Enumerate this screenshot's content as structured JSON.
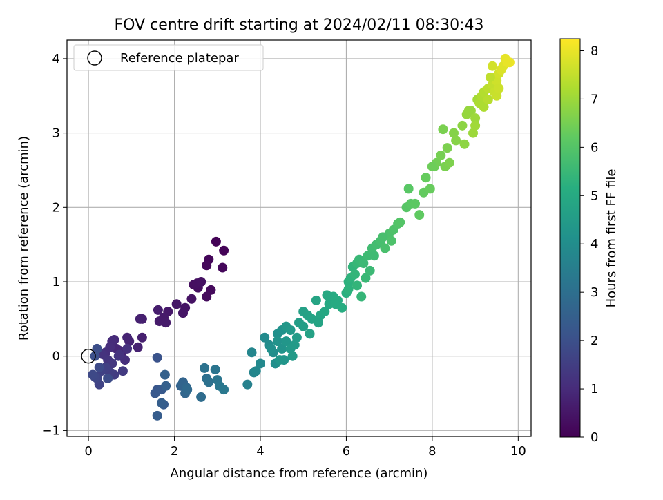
{
  "chart_data": {
    "type": "scatter",
    "title": "FOV centre drift starting at 2024/02/11 08:30:43",
    "xlabel": "Angular distance from reference (arcmin)",
    "ylabel": "Rotation from reference (arcmin)",
    "xlim": [
      -0.5,
      10.3
    ],
    "ylim": [
      -1.08,
      4.25
    ],
    "xticks": [
      0,
      2,
      4,
      6,
      8,
      10
    ],
    "yticks": [
      -1,
      0,
      1,
      2,
      3,
      4
    ],
    "grid": true,
    "legend": {
      "placement": "top-left",
      "entries": [
        "Reference platepar"
      ]
    },
    "reference_point": {
      "x": 0,
      "y": 0,
      "marker": "hollow-circle"
    },
    "colorbar": {
      "label": "Hours from first FF file",
      "colormap": "viridis",
      "range": [
        0,
        8.25
      ],
      "ticks": [
        0,
        1,
        2,
        3,
        4,
        5,
        6,
        7,
        8
      ]
    },
    "series": [
      {
        "color_by": "hours",
        "points": [
          [
            2.97,
            1.54,
            0.05
          ],
          [
            3.15,
            1.42,
            0.08
          ],
          [
            2.8,
            1.3,
            0.12
          ],
          [
            3.12,
            1.19,
            0.15
          ],
          [
            2.75,
            1.22,
            0.18
          ],
          [
            2.85,
            0.89,
            0.2
          ],
          [
            2.75,
            0.8,
            0.25
          ],
          [
            2.55,
            0.92,
            0.3
          ],
          [
            2.45,
            0.96,
            0.33
          ],
          [
            2.53,
            0.98,
            0.35
          ],
          [
            2.62,
            1.0,
            0.38
          ],
          [
            2.4,
            0.77,
            0.4
          ],
          [
            2.25,
            0.65,
            0.45
          ],
          [
            2.2,
            0.58,
            0.48
          ],
          [
            2.05,
            0.7,
            0.5
          ],
          [
            1.85,
            0.6,
            0.55
          ],
          [
            1.75,
            0.52,
            0.58
          ],
          [
            1.65,
            0.47,
            0.6
          ],
          [
            1.8,
            0.45,
            0.62
          ],
          [
            1.62,
            0.62,
            0.65
          ],
          [
            1.25,
            0.5,
            0.7
          ],
          [
            1.25,
            0.25,
            0.72
          ],
          [
            1.2,
            0.5,
            0.75
          ],
          [
            1.15,
            0.12,
            0.78
          ],
          [
            0.95,
            0.2,
            0.8
          ],
          [
            0.9,
            0.25,
            0.82
          ],
          [
            0.7,
            0.08,
            0.85
          ],
          [
            0.78,
            0.05,
            0.88
          ],
          [
            0.65,
            0.1,
            0.9
          ],
          [
            0.6,
            0.22,
            0.95
          ],
          [
            0.55,
            0.2,
            1.0
          ],
          [
            0.5,
            0.12,
            1.05
          ],
          [
            0.4,
            0.05,
            1.1
          ],
          [
            0.35,
            0.02,
            1.15
          ],
          [
            0.3,
            0.03,
            1.2
          ],
          [
            0.45,
            -0.05,
            1.25
          ],
          [
            0.55,
            -0.1,
            1.3
          ],
          [
            0.7,
            0.0,
            1.35
          ],
          [
            0.8,
            -0.2,
            1.4
          ],
          [
            0.6,
            -0.25,
            1.45
          ],
          [
            0.5,
            -0.22,
            1.5
          ],
          [
            0.4,
            -0.15,
            1.55
          ],
          [
            0.3,
            -0.2,
            1.6
          ],
          [
            0.25,
            -0.38,
            1.65
          ],
          [
            0.2,
            -0.3,
            1.7
          ],
          [
            0.15,
            -0.28,
            1.75
          ],
          [
            0.1,
            -0.25,
            1.8
          ],
          [
            0.25,
            -0.15,
            1.85
          ],
          [
            0.45,
            -0.3,
            1.9
          ],
          [
            0.2,
            0.1,
            1.95
          ],
          [
            0.15,
            0.0,
            2.0
          ],
          [
            0.85,
            -0.05,
            1.1
          ],
          [
            0.9,
            0.1,
            1.15
          ],
          [
            0.72,
            0.02,
            1.2
          ],
          [
            1.6,
            -0.02,
            2.1
          ],
          [
            1.6,
            -0.45,
            2.2
          ],
          [
            1.55,
            -0.5,
            2.25
          ],
          [
            1.7,
            -0.45,
            2.3
          ],
          [
            1.75,
            -0.65,
            2.35
          ],
          [
            1.6,
            -0.8,
            2.4
          ],
          [
            1.7,
            -0.63,
            2.45
          ],
          [
            1.8,
            -0.4,
            2.5
          ],
          [
            1.78,
            -0.25,
            2.55
          ],
          [
            2.15,
            -0.4,
            2.6
          ],
          [
            2.2,
            -0.35,
            2.65
          ],
          [
            2.25,
            -0.5,
            2.7
          ],
          [
            2.28,
            -0.42,
            2.75
          ],
          [
            2.3,
            -0.45,
            2.8
          ],
          [
            2.62,
            -0.55,
            2.9
          ],
          [
            2.75,
            -0.3,
            3.0
          ],
          [
            2.8,
            -0.35,
            3.05
          ],
          [
            2.7,
            -0.16,
            3.1
          ],
          [
            2.95,
            -0.18,
            3.15
          ],
          [
            3.0,
            -0.32,
            3.2
          ],
          [
            3.05,
            -0.4,
            3.25
          ],
          [
            3.15,
            -0.45,
            3.3
          ],
          [
            3.7,
            -0.38,
            3.6
          ],
          [
            3.85,
            -0.22,
            3.7
          ],
          [
            3.8,
            0.05,
            3.75
          ],
          [
            3.9,
            -0.2,
            3.8
          ],
          [
            4.0,
            -0.1,
            3.85
          ],
          [
            4.1,
            0.25,
            3.9
          ],
          [
            4.2,
            0.15,
            3.95
          ],
          [
            4.3,
            0.05,
            4.0
          ],
          [
            4.35,
            -0.1,
            4.05
          ],
          [
            4.4,
            0.3,
            4.1
          ],
          [
            4.5,
            0.35,
            4.15
          ],
          [
            4.5,
            0.1,
            4.2
          ],
          [
            4.55,
            -0.05,
            4.25
          ],
          [
            4.6,
            0.2,
            4.3
          ],
          [
            4.6,
            0.4,
            4.35
          ],
          [
            4.7,
            0.35,
            4.4
          ],
          [
            4.7,
            0.1,
            4.42
          ],
          [
            4.75,
            0.0,
            4.45
          ],
          [
            4.85,
            0.25,
            4.5
          ],
          [
            4.9,
            0.45,
            4.55
          ],
          [
            5.0,
            0.4,
            4.6
          ],
          [
            5.0,
            0.6,
            4.65
          ],
          [
            5.1,
            0.55,
            4.7
          ],
          [
            5.2,
            0.5,
            4.75
          ],
          [
            5.3,
            0.75,
            4.8
          ],
          [
            5.4,
            0.55,
            4.85
          ],
          [
            5.5,
            0.6,
            4.9
          ],
          [
            5.6,
            0.7,
            4.95
          ],
          [
            5.7,
            0.8,
            5.0
          ],
          [
            5.8,
            0.75,
            5.05
          ],
          [
            5.9,
            0.65,
            5.1
          ],
          [
            6.0,
            0.85,
            5.2
          ],
          [
            6.05,
            1.0,
            5.25
          ],
          [
            6.1,
            1.05,
            5.3
          ],
          [
            6.15,
            1.2,
            5.35
          ],
          [
            6.2,
            1.1,
            5.4
          ],
          [
            6.25,
            1.25,
            5.45
          ],
          [
            6.3,
            1.3,
            5.5
          ],
          [
            6.4,
            1.25,
            5.55
          ],
          [
            6.5,
            1.35,
            5.6
          ],
          [
            6.6,
            1.45,
            5.65
          ],
          [
            6.7,
            1.5,
            5.7
          ],
          [
            6.8,
            1.55,
            5.75
          ],
          [
            6.9,
            1.45,
            5.8
          ],
          [
            7.0,
            1.65,
            5.85
          ],
          [
            7.1,
            1.7,
            5.9
          ],
          [
            7.2,
            1.78,
            5.95
          ],
          [
            7.4,
            2.0,
            6.05
          ],
          [
            7.5,
            2.05,
            6.1
          ],
          [
            7.6,
            2.05,
            6.15
          ],
          [
            7.8,
            2.2,
            6.25
          ],
          [
            7.95,
            2.25,
            6.3
          ],
          [
            8.05,
            2.55,
            6.4
          ],
          [
            8.1,
            2.6,
            6.45
          ],
          [
            8.2,
            2.7,
            6.5
          ],
          [
            8.3,
            2.55,
            6.55
          ],
          [
            8.4,
            2.6,
            6.6
          ],
          [
            8.5,
            3.0,
            6.7
          ],
          [
            8.7,
            3.1,
            6.8
          ],
          [
            8.8,
            3.25,
            6.9
          ],
          [
            8.9,
            3.3,
            6.95
          ],
          [
            9.0,
            3.2,
            7.0
          ],
          [
            9.05,
            3.45,
            7.1
          ],
          [
            9.1,
            3.4,
            7.2
          ],
          [
            9.15,
            3.5,
            7.25
          ],
          [
            9.2,
            3.55,
            7.3
          ],
          [
            9.3,
            3.6,
            7.4
          ],
          [
            9.4,
            3.65,
            7.5
          ],
          [
            9.45,
            3.75,
            7.6
          ],
          [
            9.5,
            3.7,
            7.65
          ],
          [
            9.55,
            3.8,
            7.7
          ],
          [
            9.6,
            3.85,
            7.8
          ],
          [
            9.65,
            3.9,
            7.85
          ],
          [
            9.7,
            4.0,
            7.95
          ],
          [
            9.8,
            3.95,
            8.05
          ],
          [
            4.25,
            0.1,
            4.1
          ],
          [
            4.4,
            0.2,
            4.2
          ],
          [
            4.45,
            -0.05,
            4.3
          ],
          [
            4.8,
            0.15,
            4.45
          ],
          [
            5.15,
            0.3,
            4.7
          ],
          [
            5.35,
            0.45,
            4.78
          ],
          [
            5.55,
            0.82,
            4.95
          ],
          [
            5.75,
            0.7,
            5.02
          ],
          [
            6.05,
            0.9,
            5.28
          ],
          [
            6.25,
            0.95,
            5.38
          ],
          [
            6.35,
            0.8,
            5.42
          ],
          [
            6.45,
            1.05,
            5.5
          ],
          [
            6.55,
            1.15,
            5.55
          ],
          [
            6.65,
            1.35,
            5.62
          ],
          [
            6.85,
            1.6,
            5.78
          ],
          [
            7.05,
            1.55,
            5.88
          ],
          [
            7.25,
            1.8,
            6.0
          ],
          [
            7.45,
            2.25,
            6.1
          ],
          [
            7.7,
            1.9,
            6.2
          ],
          [
            7.85,
            2.4,
            6.28
          ],
          [
            8.0,
            2.55,
            6.38
          ],
          [
            8.25,
            3.05,
            6.55
          ],
          [
            8.35,
            2.8,
            6.58
          ],
          [
            8.55,
            2.9,
            6.72
          ],
          [
            8.75,
            2.85,
            6.82
          ],
          [
            8.85,
            3.3,
            6.92
          ],
          [
            8.95,
            3.0,
            7.0
          ],
          [
            9.0,
            3.1,
            7.05
          ],
          [
            9.2,
            3.35,
            7.22
          ],
          [
            9.3,
            3.45,
            7.35
          ],
          [
            9.35,
            3.75,
            7.45
          ],
          [
            9.45,
            3.55,
            7.55
          ],
          [
            9.5,
            3.5,
            7.58
          ],
          [
            9.55,
            3.6,
            7.62
          ],
          [
            9.4,
            3.9,
            7.7
          ],
          [
            9.75,
            3.95,
            7.98
          ]
        ]
      }
    ]
  }
}
